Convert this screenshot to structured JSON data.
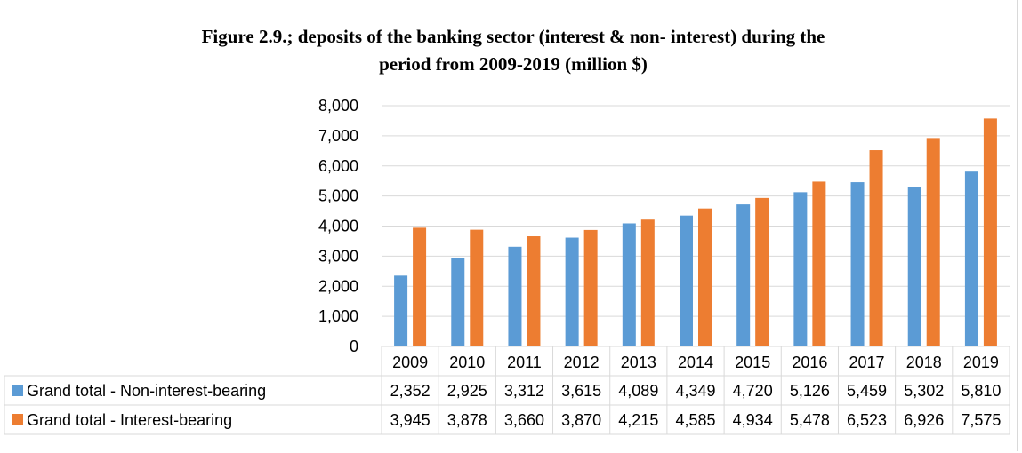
{
  "chart_data": {
    "type": "bar",
    "title_line1": "Figure 2.9.; deposits of the banking sector (interest & non- interest) during the",
    "title_line2": "period from 2009-2019 (million $)",
    "categories": [
      "2009",
      "2010",
      "2011",
      "2012",
      "2013",
      "2014",
      "2015",
      "2016",
      "2017",
      "2018",
      "2019"
    ],
    "y_ticks": [
      "0",
      "1,000",
      "2,000",
      "3,000",
      "4,000",
      "5,000",
      "6,000",
      "7,000",
      "8,000"
    ],
    "ylim": [
      0,
      8000
    ],
    "grid": true,
    "legend_placement": "data-table",
    "series": [
      {
        "name": "Grand total - Non-interest-bearing",
        "color": "#5b9bd5",
        "values": [
          2352,
          2925,
          3312,
          3615,
          4089,
          4349,
          4720,
          5126,
          5459,
          5302,
          5810
        ],
        "labels": [
          "2,352",
          "2,925",
          "3,312",
          "3,615",
          "4,089",
          "4,349",
          "4,720",
          "5,126",
          "5,459",
          "5,302",
          "5,810"
        ]
      },
      {
        "name": "Grand total - Interest-bearing",
        "color": "#ed7d31",
        "values": [
          3945,
          3878,
          3660,
          3870,
          4215,
          4585,
          4934,
          5478,
          6523,
          6926,
          7575
        ],
        "labels": [
          "3,945",
          "3,878",
          "3,660",
          "3,870",
          "4,215",
          "4,585",
          "4,934",
          "5,478",
          "6,523",
          "6,926",
          "7,575"
        ]
      }
    ]
  }
}
